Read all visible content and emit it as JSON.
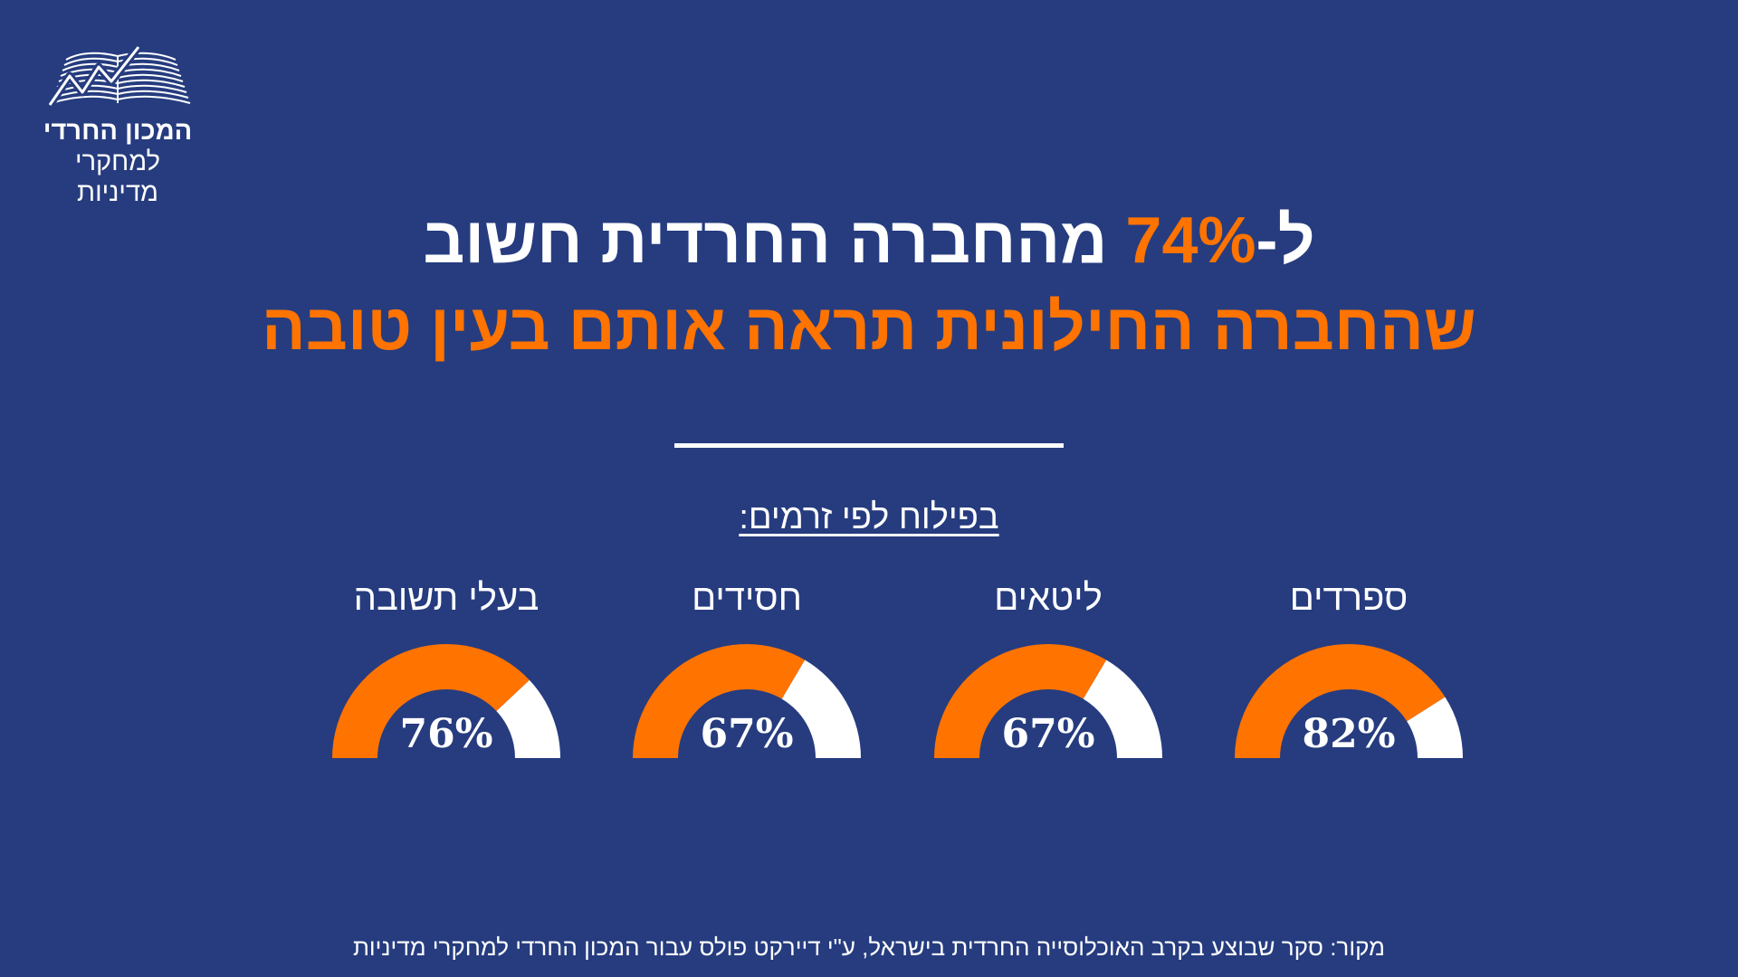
{
  "logo": {
    "line1": "המכון החרדי",
    "line2": "למחקרי מדיניות"
  },
  "headline": {
    "prefix": "ל-",
    "highlight": "74%",
    "suffix": " מהחברה החרדית חשוב",
    "line2": "שהחברה החילונית תראה אותם בעין טובה"
  },
  "breakdown_title": "בפילוח לפי זרמים:",
  "source": "מקור: סקר שבוצע בקרב האוכלוסייה החרדית בישראל,  ע\"י דיירקט פולס עבור המכון החרדי למחקרי מדיניות",
  "colors": {
    "background": "#263c7f",
    "accent": "#ff7300",
    "remainder": "#ffffff"
  },
  "chart_data": {
    "type": "gauge",
    "title": "בפילוח לפי זרמים:",
    "unit": "%",
    "categories": [
      "ספרדים",
      "ליטאים",
      "חסידים",
      "בעלי תשובה"
    ],
    "values": [
      82,
      67,
      67,
      76
    ],
    "labels": [
      "82%",
      "67%",
      "67%",
      "76%"
    ],
    "range": [
      0,
      100
    ]
  }
}
